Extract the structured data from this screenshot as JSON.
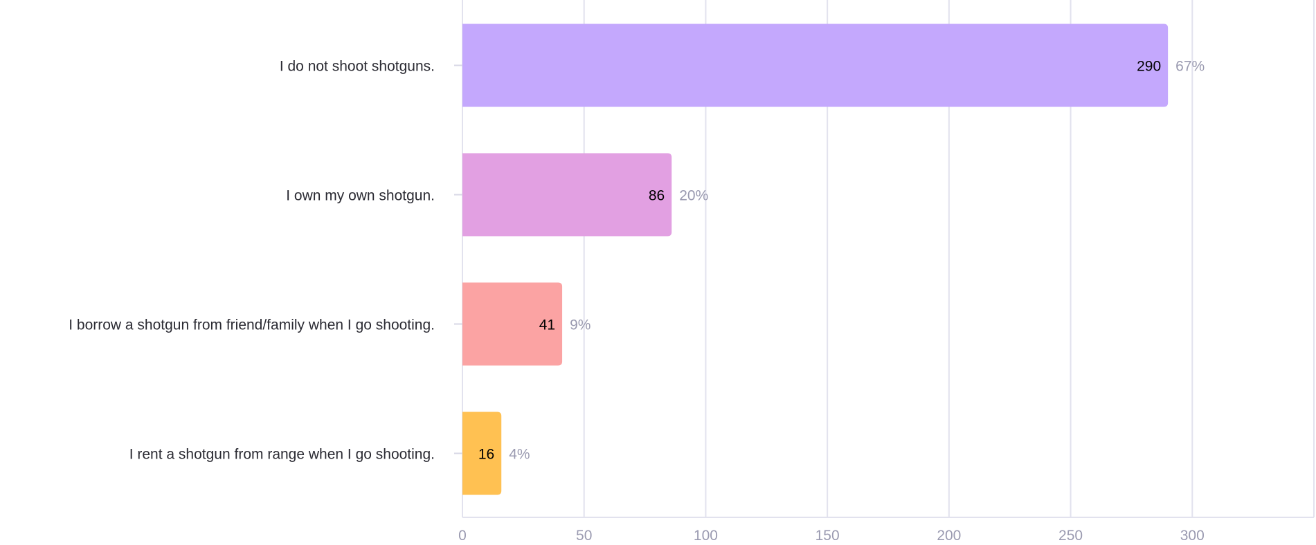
{
  "chart_data": {
    "type": "bar",
    "orientation": "horizontal",
    "categories": [
      "I do not shoot shotguns.",
      "I own my own shotgun.",
      "I borrow a shotgun from friend/family when I go shooting.",
      "I rent a shotgun from range when I go shooting."
    ],
    "values": [
      290,
      86,
      41,
      16
    ],
    "percent_labels": [
      "67%",
      "20%",
      "9%",
      "4%"
    ],
    "colors": [
      "#c4a8fd",
      "#e2a0e2",
      "#fba3a3",
      "#ffc152"
    ],
    "xlim": [
      0,
      350
    ],
    "xticks": [
      0,
      50,
      100,
      150,
      200,
      250,
      300
    ],
    "grid": true,
    "title": "",
    "xlabel": "",
    "ylabel": ""
  }
}
